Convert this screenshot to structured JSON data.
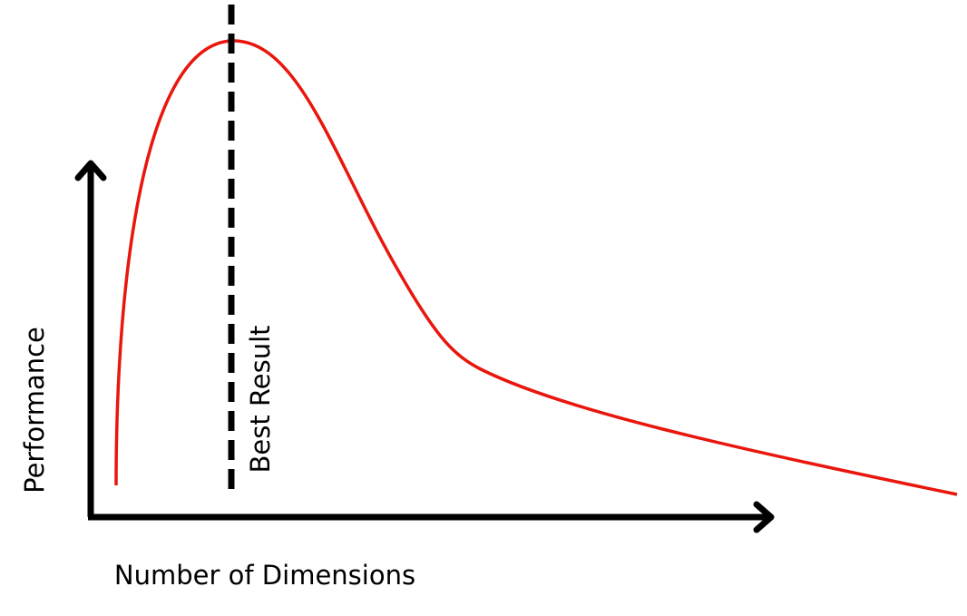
{
  "y_axis_label": "Performance",
  "x_axis_label": "Number of Dimensions",
  "marker_label": "Best Result"
}
